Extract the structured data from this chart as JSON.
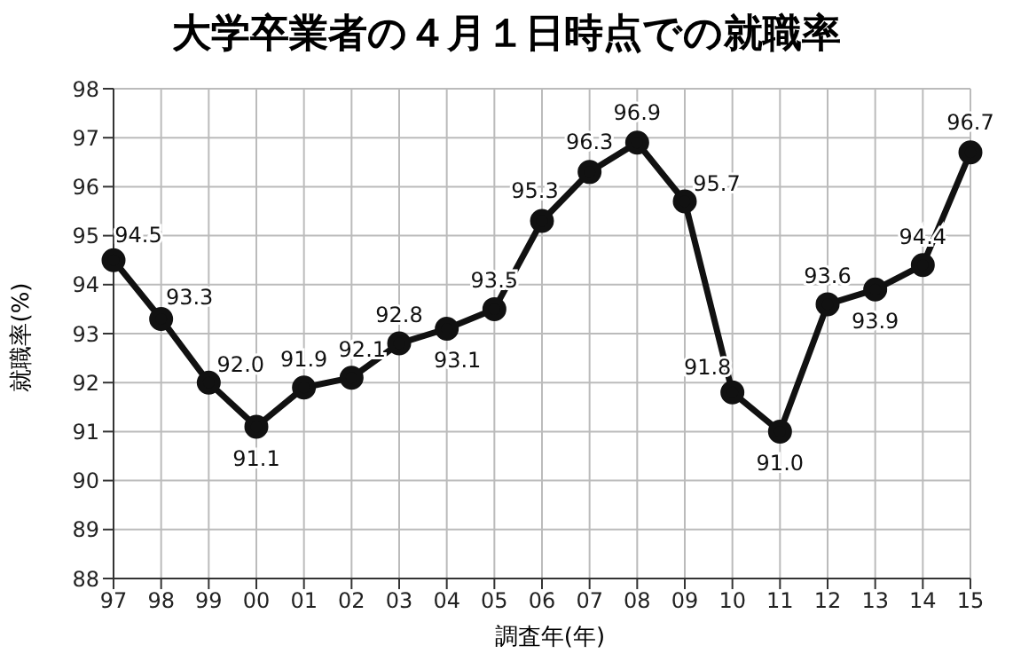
{
  "chart_data": {
    "type": "line",
    "title": "大学卒業者の４月１日時点での就職率",
    "xlabel": "調査年(年)",
    "ylabel": "就職率(%)",
    "categories": [
      "97",
      "98",
      "99",
      "00",
      "01",
      "02",
      "03",
      "04",
      "05",
      "06",
      "07",
      "08",
      "09",
      "10",
      "11",
      "12",
      "13",
      "14",
      "15"
    ],
    "series": [
      {
        "color": "#111111",
        "values": [
          94.5,
          93.3,
          92.0,
          91.1,
          91.9,
          92.1,
          92.8,
          93.1,
          93.5,
          95.3,
          96.3,
          96.9,
          95.7,
          91.8,
          91.0,
          93.6,
          93.9,
          94.4,
          96.7
        ],
        "value_labels": [
          "94.5",
          "93.3",
          "92.0",
          "91.1",
          "91.9",
          "92.1",
          "92.8",
          "93.1",
          "93.5",
          "95.3",
          "96.3",
          "96.9",
          "95.7",
          "91.8",
          "91.0",
          "93.6",
          "93.9",
          "94.4",
          "96.7"
        ]
      }
    ],
    "ylim": [
      88,
      98
    ],
    "yticks": [
      88,
      89,
      90,
      91,
      92,
      93,
      94,
      95,
      96,
      97,
      98
    ],
    "grid": true,
    "marker": "circle",
    "line_style": "solid"
  }
}
